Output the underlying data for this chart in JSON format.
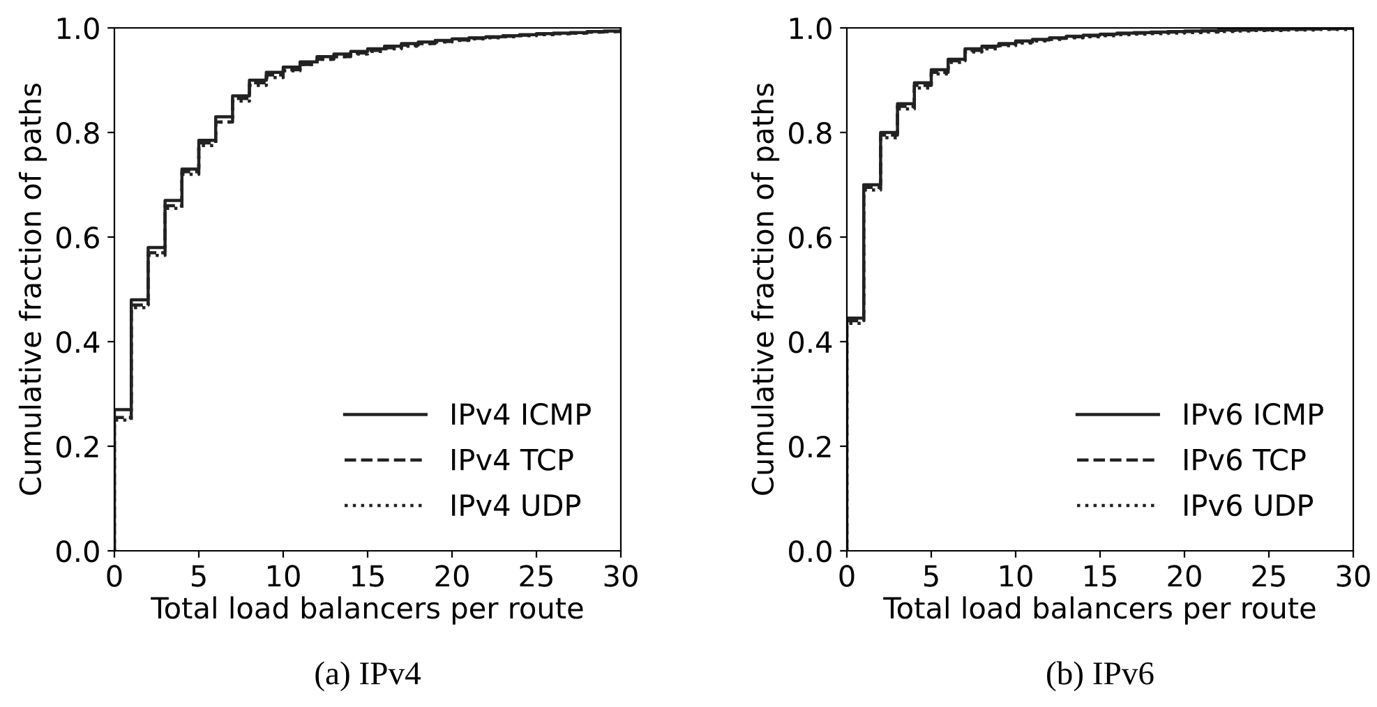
{
  "chart_data": [
    {
      "type": "step",
      "xlabel": "Total load balancers per route",
      "ylabel": "Cumulative fraction of paths",
      "annotations": [
        "(a) IPv4"
      ],
      "x": [
        0,
        0,
        1,
        2,
        3,
        4,
        5,
        6,
        7,
        8,
        9,
        10,
        11,
        12,
        13,
        14,
        15,
        16,
        17,
        18,
        19,
        20,
        21,
        22,
        23,
        24,
        25,
        26,
        27,
        28,
        29,
        30
      ],
      "series": [
        {
          "name": "IPv4 ICMP",
          "color": "#222222",
          "line_style": "solid",
          "values": [
            0,
            0.27,
            0.48,
            0.58,
            0.67,
            0.73,
            0.785,
            0.83,
            0.87,
            0.9,
            0.915,
            0.925,
            0.935,
            0.945,
            0.95,
            0.955,
            0.96,
            0.965,
            0.97,
            0.973,
            0.976,
            0.979,
            0.981,
            0.983,
            0.985,
            0.987,
            0.989,
            0.99,
            0.991,
            0.993,
            0.994,
            0.995
          ]
        },
        {
          "name": "IPv4 TCP",
          "color": "#222222",
          "line_style": "dashed",
          "values": [
            0,
            0.255,
            0.47,
            0.57,
            0.66,
            0.725,
            0.78,
            0.82,
            0.865,
            0.895,
            0.91,
            0.92,
            0.93,
            0.94,
            0.945,
            0.952,
            0.957,
            0.962,
            0.967,
            0.97,
            0.974,
            0.977,
            0.98,
            0.982,
            0.984,
            0.986,
            0.988,
            0.989,
            0.99,
            0.992,
            0.993,
            0.994
          ]
        },
        {
          "name": "IPv4 UDP",
          "color": "#222222",
          "line_style": "dotted",
          "values": [
            0,
            0.25,
            0.465,
            0.565,
            0.655,
            0.72,
            0.775,
            0.82,
            0.86,
            0.89,
            0.905,
            0.918,
            0.93,
            0.94,
            0.945,
            0.95,
            0.955,
            0.96,
            0.965,
            0.97,
            0.973,
            0.976,
            0.979,
            0.981,
            0.983,
            0.985,
            0.987,
            0.989,
            0.99,
            0.992,
            0.993,
            0.994
          ]
        }
      ],
      "xlim": [
        0,
        30
      ],
      "xticks": [
        0,
        5,
        10,
        15,
        20,
        25,
        30
      ],
      "ylim": [
        0,
        1
      ],
      "yticks": [
        {
          "value": 0,
          "label": "0.0"
        },
        {
          "value": 0.2,
          "label": "0.2"
        },
        {
          "value": 0.4,
          "label": "0.4"
        },
        {
          "value": 0.6,
          "label": "0.6"
        },
        {
          "value": 0.8,
          "label": "0.8"
        },
        {
          "value": 1,
          "label": "1.0"
        }
      ],
      "legend": "bottom right",
      "grid": false
    },
    {
      "type": "step",
      "xlabel": "Total load balancers per route",
      "ylabel": "Cumulative fraction of paths",
      "annotations": [
        "(b) IPv6"
      ],
      "x": [
        0,
        0,
        1,
        2,
        3,
        4,
        5,
        6,
        7,
        8,
        9,
        10,
        11,
        12,
        13,
        14,
        15,
        16,
        17,
        18,
        19,
        20,
        21,
        22,
        23,
        24,
        25,
        26,
        27,
        28,
        29,
        30
      ],
      "series": [
        {
          "name": "IPv6 ICMP",
          "color": "#222222",
          "line_style": "solid",
          "values": [
            0,
            0.445,
            0.7,
            0.8,
            0.855,
            0.895,
            0.92,
            0.94,
            0.96,
            0.965,
            0.97,
            0.975,
            0.978,
            0.981,
            0.984,
            0.986,
            0.988,
            0.99,
            0.991,
            0.992,
            0.993,
            0.994,
            0.995,
            0.996,
            0.996,
            0.997,
            0.997,
            0.998,
            0.998,
            0.999,
            0.999,
            0.999
          ]
        },
        {
          "name": "IPv6 TCP",
          "color": "#222222",
          "line_style": "dashed",
          "values": [
            0,
            0.44,
            0.695,
            0.795,
            0.85,
            0.89,
            0.915,
            0.937,
            0.957,
            0.963,
            0.968,
            0.973,
            0.977,
            0.98,
            0.983,
            0.985,
            0.987,
            0.989,
            0.99,
            0.991,
            0.992,
            0.993,
            0.994,
            0.995,
            0.996,
            0.996,
            0.997,
            0.997,
            0.998,
            0.998,
            0.999,
            0.999
          ]
        },
        {
          "name": "IPv6 UDP",
          "color": "#222222",
          "line_style": "dotted",
          "values": [
            0,
            0.435,
            0.69,
            0.79,
            0.845,
            0.885,
            0.912,
            0.934,
            0.954,
            0.96,
            0.966,
            0.971,
            0.975,
            0.978,
            0.981,
            0.983,
            0.985,
            0.987,
            0.988,
            0.989,
            0.99,
            0.991,
            0.992,
            0.993,
            0.994,
            0.995,
            0.995,
            0.996,
            0.996,
            0.997,
            0.997,
            0.998
          ]
        }
      ],
      "xlim": [
        0,
        30
      ],
      "xticks": [
        0,
        5,
        10,
        15,
        20,
        25,
        30
      ],
      "ylim": [
        0,
        1
      ],
      "yticks": [
        {
          "value": 0,
          "label": "0.0"
        },
        {
          "value": 0.2,
          "label": "0.2"
        },
        {
          "value": 0.4,
          "label": "0.4"
        },
        {
          "value": 0.6,
          "label": "0.6"
        },
        {
          "value": 0.8,
          "label": "0.8"
        },
        {
          "value": 1,
          "label": "1.0"
        }
      ],
      "legend": "bottom right",
      "grid": false
    }
  ]
}
